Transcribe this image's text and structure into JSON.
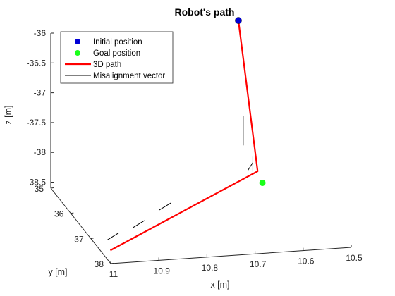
{
  "chart_data": {
    "type": "line",
    "title": "Robot's path",
    "xlabel": "x [m]",
    "ylabel": "y [m]",
    "zlabel": "z [m]",
    "x_ticks": [
      "11",
      "10.9",
      "10.8",
      "10.7",
      "10.6",
      "10.5"
    ],
    "y_ticks": [
      "35",
      "36",
      "37",
      "38"
    ],
    "z_ticks": [
      "-36",
      "-36.5",
      "-37",
      "-37.5",
      "-38",
      "-38.5"
    ],
    "xlim": [
      10.5,
      11
    ],
    "ylim": [
      35,
      38
    ],
    "zlim": [
      -38.6,
      -36
    ],
    "legend_position": "top-left",
    "legend": [
      {
        "label": "Initial position",
        "marker": "dot",
        "color": "#0000d6"
      },
      {
        "label": "Goal position",
        "marker": "dot",
        "color": "#1aff1a"
      },
      {
        "label": "3D path",
        "marker": "line",
        "color": "#ff0000"
      },
      {
        "label": "Misalignment vector",
        "marker": "line",
        "color": "#000000"
      }
    ],
    "initial_position": {
      "x": 10.61,
      "y": 35.0,
      "z": -36.0
    },
    "goal_position": {
      "x": 10.56,
      "y": 35.0,
      "z": -38.75
    },
    "path": {
      "color": "#ff0000",
      "points": [
        {
          "x": 10.61,
          "y": 35.0,
          "z": -36.0
        },
        {
          "x": 10.57,
          "y": 35.0,
          "z": -38.55
        },
        {
          "x": 10.98,
          "y": 37.5,
          "z": -38.6
        }
      ]
    },
    "misalignment_vectors": {
      "color": "#000000",
      "segments": [
        {
          "from": {
            "x": 10.6,
            "y": 35.0,
            "z": -37.6
          },
          "to": {
            "x": 10.6,
            "y": 35.0,
            "z": -38.1
          }
        },
        {
          "from": {
            "x": 10.58,
            "y": 35.0,
            "z": -38.4
          },
          "to": {
            "x": 10.59,
            "y": 35.0,
            "z": -38.52
          }
        },
        {
          "from": {
            "x": 10.58,
            "y": 35.0,
            "z": -38.3
          },
          "to": {
            "x": 10.58,
            "y": 35.0,
            "z": -38.55
          }
        },
        {
          "from": {
            "x": 10.8,
            "y": 36.2,
            "z": -38.45
          },
          "to": {
            "x": 10.82,
            "y": 36.1,
            "z": -38.6
          }
        },
        {
          "from": {
            "x": 10.88,
            "y": 36.8,
            "z": -38.45
          },
          "to": {
            "x": 10.9,
            "y": 36.7,
            "z": -38.6
          }
        },
        {
          "from": {
            "x": 10.95,
            "y": 37.2,
            "z": -38.45
          },
          "to": {
            "x": 10.97,
            "y": 37.1,
            "z": -38.6
          }
        }
      ]
    },
    "grid": false
  }
}
